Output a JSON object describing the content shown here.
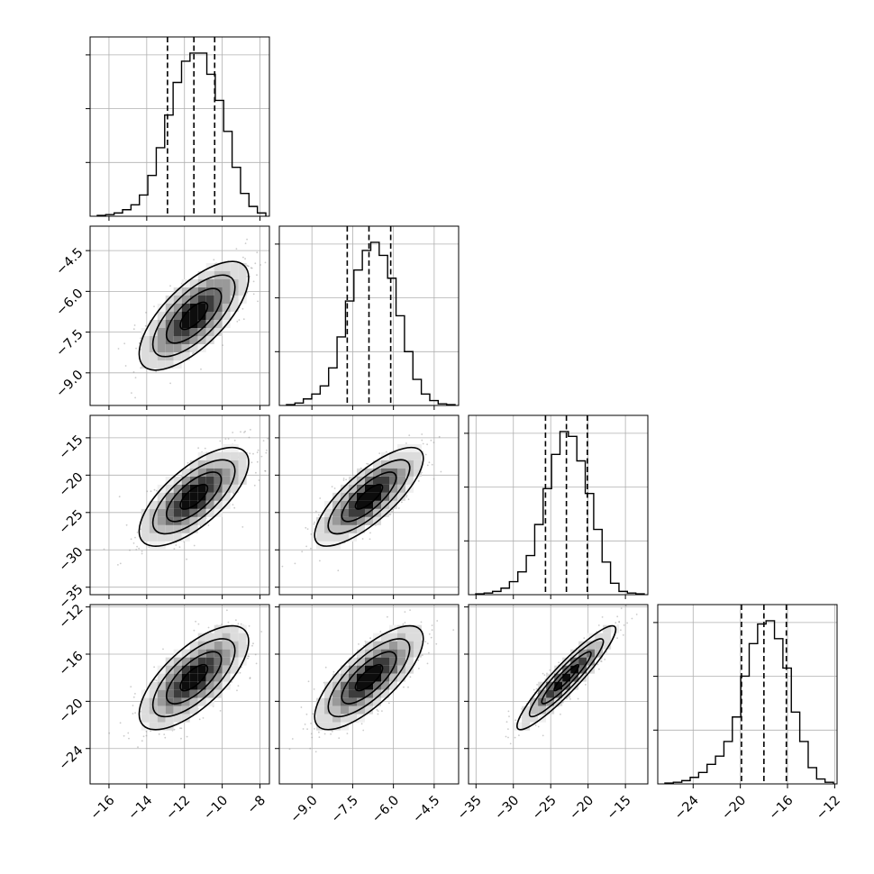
{
  "colors": {
    "background": "#ffffff",
    "line": "#000000",
    "grid": "#b0b0b0",
    "scatter": "#8c8c8c"
  },
  "chart_data": {
    "type": "corner",
    "grid": true,
    "parameters": [
      {
        "label": "",
        "range": [
          -17,
          -7.5
        ],
        "ticks": [
          "-16",
          "-14",
          "-12",
          "-10",
          "-8"
        ],
        "tick_values": [
          -16,
          -14,
          -12,
          -10,
          -8
        ],
        "median": -11.5,
        "q16": -12.9,
        "q84": -10.4,
        "hist_bins": [
          0.005,
          0.01,
          0.02,
          0.04,
          0.07,
          0.13,
          0.25,
          0.42,
          0.62,
          0.82,
          0.95,
          1.0,
          1.0,
          0.87,
          0.71,
          0.52,
          0.3,
          0.14,
          0.06,
          0.02
        ]
      },
      {
        "label": "",
        "range": [
          -10.2,
          -3.6
        ],
        "ticks": [
          "-9.0",
          "-7.5",
          "-6.0",
          "-4.5"
        ],
        "tick_values": [
          -9.0,
          -7.5,
          -6.0,
          -4.5
        ],
        "median": -6.9,
        "q16": -7.7,
        "q84": -6.1,
        "hist_bins": [
          0.005,
          0.015,
          0.04,
          0.07,
          0.12,
          0.23,
          0.42,
          0.64,
          0.83,
          0.95,
          1.0,
          0.92,
          0.78,
          0.55,
          0.33,
          0.16,
          0.07,
          0.03,
          0.01,
          0.005
        ]
      },
      {
        "label": "",
        "range": [
          -36,
          -12
        ],
        "ticks": [
          "-35",
          "-30",
          "-25",
          "-20",
          "-15"
        ],
        "tick_values": [
          -35,
          -30,
          -25,
          -20,
          -15
        ],
        "median": -22.9,
        "q16": -25.7,
        "q84": -20.1,
        "hist_bins": [
          0.005,
          0.01,
          0.02,
          0.04,
          0.08,
          0.14,
          0.24,
          0.43,
          0.65,
          0.86,
          1.0,
          0.97,
          0.82,
          0.62,
          0.4,
          0.2,
          0.07,
          0.02,
          0.01,
          0.005
        ]
      },
      {
        "label": "",
        "range": [
          -27,
          -11.8
        ],
        "ticks": [
          "-24",
          "-20",
          "-16",
          "-12"
        ],
        "tick_values": [
          -24,
          -20,
          -16,
          -12
        ],
        "median": -18.0,
        "q16": -19.9,
        "q84": -16.1,
        "hist_bins": [
          0.005,
          0.01,
          0.02,
          0.04,
          0.07,
          0.12,
          0.17,
          0.26,
          0.41,
          0.66,
          0.86,
          0.98,
          1.0,
          0.89,
          0.71,
          0.44,
          0.26,
          0.1,
          0.03,
          0.01
        ]
      }
    ],
    "pairs": [
      {
        "row": 1,
        "col": 0,
        "mean": [
          -11.5,
          -6.9
        ],
        "sd": [
          1.45,
          1.0
        ],
        "corr": 0.7
      },
      {
        "row": 2,
        "col": 0,
        "mean": [
          -11.5,
          -22.9
        ],
        "sd": [
          1.45,
          3.3
        ],
        "corr": 0.7
      },
      {
        "row": 2,
        "col": 1,
        "mean": [
          -6.9,
          -22.9
        ],
        "sd": [
          1.0,
          3.3
        ],
        "corr": 0.78
      },
      {
        "row": 3,
        "col": 0,
        "mean": [
          -11.5,
          -18.0
        ],
        "sd": [
          1.45,
          2.2
        ],
        "corr": 0.7
      },
      {
        "row": 3,
        "col": 1,
        "mean": [
          -6.9,
          -18.0
        ],
        "sd": [
          1.0,
          2.2
        ],
        "corr": 0.75
      },
      {
        "row": 3,
        "col": 2,
        "mean": [
          -22.9,
          -18.0
        ],
        "sd": [
          3.3,
          2.2
        ],
        "corr": 0.93
      }
    ],
    "contour_levels_sigma": [
      0.5,
      1.0,
      1.5,
      2.0
    ]
  }
}
